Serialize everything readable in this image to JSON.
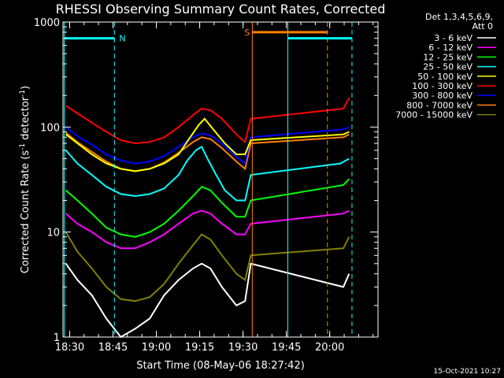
{
  "chart_data": {
    "type": "line",
    "title": "RHESSI Observing Summary Count Rates, Corrected",
    "xlabel": "Start Time (08-May-06 18:27:42)",
    "ylabel": "Corrected Count Rate (s^-1 detector^-1)",
    "ylabel_main": "Corrected Count Rate (s",
    "ylabel_exp1": "-1",
    "ylabel_mid": " detector",
    "ylabel_exp2": "-1",
    "ylabel_end": ")",
    "yscale": "log",
    "ylim": [
      1,
      1000
    ],
    "xlim": [
      0,
      109
    ],
    "x_units": "minutes after 18:27:42",
    "x_ticks": [
      {
        "value": 2.3,
        "label": "18:30"
      },
      {
        "value": 17.3,
        "label": "18:45"
      },
      {
        "value": 32.3,
        "label": "19:00"
      },
      {
        "value": 47.3,
        "label": "19:15"
      },
      {
        "value": 62.3,
        "label": "19:30"
      },
      {
        "value": 77.3,
        "label": "19:45"
      },
      {
        "value": 92.3,
        "label": "20:00"
      }
    ],
    "y_ticks": [
      {
        "value": 1,
        "label": "1"
      },
      {
        "value": 10,
        "label": "10"
      },
      {
        "value": 100,
        "label": "100"
      },
      {
        "value": 1000,
        "label": "1000"
      }
    ],
    "legend": {
      "placement": "top-right",
      "header_1": "Det 1,3,4,5,6,9,",
      "header_2": "Att 0"
    },
    "series": [
      {
        "name": "3 - 6 keV",
        "color": "#ffffff",
        "points": [
          [
            1,
            5
          ],
          [
            5,
            3.5
          ],
          [
            10,
            2.5
          ],
          [
            15,
            1.5
          ],
          [
            20,
            1
          ],
          [
            25,
            1.2
          ],
          [
            30,
            1.5
          ],
          [
            35,
            2.5
          ],
          [
            40,
            3.5
          ],
          [
            45,
            4.5
          ],
          [
            48,
            5
          ],
          [
            51,
            4.5
          ],
          [
            55,
            3
          ],
          [
            60,
            2
          ],
          [
            63,
            2.2
          ],
          [
            65,
            5
          ],
          [
            97,
            3
          ],
          [
            99,
            4
          ]
        ]
      },
      {
        "name": "6 - 12 keV",
        "color": "#ff00ff",
        "points": [
          [
            1,
            15
          ],
          [
            5,
            12
          ],
          [
            10,
            10
          ],
          [
            15,
            8
          ],
          [
            20,
            7
          ],
          [
            25,
            7
          ],
          [
            30,
            8
          ],
          [
            35,
            9.5
          ],
          [
            40,
            12
          ],
          [
            45,
            15
          ],
          [
            48,
            16
          ],
          [
            51,
            15
          ],
          [
            55,
            12
          ],
          [
            60,
            9.5
          ],
          [
            63,
            9.5
          ],
          [
            65,
            12
          ],
          [
            97,
            15
          ],
          [
            99,
            16
          ]
        ]
      },
      {
        "name": "12 - 25 keV",
        "color": "#00ff00",
        "points": [
          [
            1,
            25
          ],
          [
            5,
            20
          ],
          [
            10,
            15
          ],
          [
            15,
            11
          ],
          [
            20,
            9.5
          ],
          [
            25,
            9
          ],
          [
            30,
            10
          ],
          [
            35,
            12
          ],
          [
            40,
            16
          ],
          [
            45,
            22
          ],
          [
            48,
            27
          ],
          [
            51,
            25
          ],
          [
            55,
            19
          ],
          [
            60,
            14
          ],
          [
            63,
            14
          ],
          [
            65,
            20
          ],
          [
            97,
            28
          ],
          [
            99,
            32
          ]
        ]
      },
      {
        "name": "25 - 50 keV",
        "color": "#00ffff",
        "points": [
          [
            1,
            60
          ],
          [
            5,
            45
          ],
          [
            10,
            35
          ],
          [
            15,
            27
          ],
          [
            20,
            23
          ],
          [
            25,
            22
          ],
          [
            30,
            23
          ],
          [
            35,
            26
          ],
          [
            40,
            35
          ],
          [
            43,
            48
          ],
          [
            46,
            60
          ],
          [
            48,
            65
          ],
          [
            50,
            50
          ],
          [
            53,
            35
          ],
          [
            56,
            25
          ],
          [
            60,
            20
          ],
          [
            63,
            20
          ],
          [
            65,
            35
          ],
          [
            96,
            45
          ],
          [
            99,
            50
          ]
        ]
      },
      {
        "name": "50 - 100 keV",
        "color": "#ffff00",
        "points": [
          [
            1,
            85
          ],
          [
            5,
            70
          ],
          [
            10,
            55
          ],
          [
            15,
            45
          ],
          [
            20,
            40
          ],
          [
            25,
            38
          ],
          [
            30,
            40
          ],
          [
            35,
            45
          ],
          [
            40,
            55
          ],
          [
            44,
            80
          ],
          [
            47,
            105
          ],
          [
            49,
            120
          ],
          [
            52,
            95
          ],
          [
            56,
            70
          ],
          [
            60,
            55
          ],
          [
            63,
            55
          ],
          [
            65,
            75
          ],
          [
            97,
            85
          ],
          [
            99,
            90
          ]
        ]
      },
      {
        "name": "100 - 300 keV",
        "color": "#ff0000",
        "points": [
          [
            1,
            160
          ],
          [
            5,
            135
          ],
          [
            10,
            110
          ],
          [
            15,
            90
          ],
          [
            20,
            75
          ],
          [
            25,
            70
          ],
          [
            30,
            72
          ],
          [
            35,
            80
          ],
          [
            40,
            100
          ],
          [
            45,
            130
          ],
          [
            48,
            150
          ],
          [
            51,
            145
          ],
          [
            55,
            120
          ],
          [
            60,
            85
          ],
          [
            63,
            72
          ],
          [
            65,
            120
          ],
          [
            97,
            150
          ],
          [
            99,
            190
          ]
        ]
      },
      {
        "name": "300 - 800 keV",
        "color": "#0000ff",
        "points": [
          [
            1,
            100
          ],
          [
            5,
            82
          ],
          [
            10,
            68
          ],
          [
            15,
            55
          ],
          [
            20,
            48
          ],
          [
            25,
            45
          ],
          [
            30,
            47
          ],
          [
            35,
            53
          ],
          [
            40,
            65
          ],
          [
            45,
            80
          ],
          [
            48,
            87
          ],
          [
            51,
            83
          ],
          [
            55,
            70
          ],
          [
            60,
            52
          ],
          [
            63,
            45
          ],
          [
            65,
            80
          ],
          [
            97,
            95
          ],
          [
            99,
            100
          ]
        ]
      },
      {
        "name": "800 - 7000 keV",
        "color": "#ff8000",
        "points": [
          [
            1,
            88
          ],
          [
            5,
            72
          ],
          [
            10,
            58
          ],
          [
            15,
            47
          ],
          [
            20,
            40
          ],
          [
            25,
            38
          ],
          [
            30,
            40
          ],
          [
            35,
            46
          ],
          [
            40,
            57
          ],
          [
            45,
            72
          ],
          [
            48,
            80
          ],
          [
            51,
            77
          ],
          [
            55,
            63
          ],
          [
            60,
            47
          ],
          [
            63,
            40
          ],
          [
            65,
            70
          ],
          [
            97,
            80
          ],
          [
            99,
            85
          ]
        ]
      },
      {
        "name": "7000 - 15000 keV",
        "color": "#808000",
        "points": [
          [
            1,
            10
          ],
          [
            5,
            6.5
          ],
          [
            10,
            4.5
          ],
          [
            15,
            3
          ],
          [
            20,
            2.3
          ],
          [
            25,
            2.2
          ],
          [
            30,
            2.4
          ],
          [
            35,
            3.2
          ],
          [
            40,
            5
          ],
          [
            45,
            7.5
          ],
          [
            48,
            9.5
          ],
          [
            51,
            8.5
          ],
          [
            55,
            6
          ],
          [
            60,
            4
          ],
          [
            63,
            3.5
          ],
          [
            65,
            6
          ],
          [
            97,
            7
          ],
          [
            99,
            9
          ]
        ]
      }
    ],
    "markers": [
      {
        "label": "N",
        "color": "#00ffff",
        "x_start": 0.5,
        "x_end": 17.8,
        "level": 700
      },
      {
        "label": "S",
        "color": "#ff8000",
        "x_start": 65.5,
        "x_end": 91.5,
        "level": 800
      },
      {
        "label": "",
        "color": "#00ffff",
        "x_start": 77.8,
        "x_end": 100,
        "level": 700
      }
    ],
    "vlines": [
      {
        "x": 0.5,
        "color": "#00ffff",
        "style": "solid"
      },
      {
        "x": 17.8,
        "color": "#00ffff",
        "style": "dashed"
      },
      {
        "x": 65.5,
        "color": "#ff8000",
        "style": "solid"
      },
      {
        "x": 77.8,
        "color": "#00ffff",
        "style": "solid"
      },
      {
        "x": 91.5,
        "color": "#ff8000",
        "style": "dashed"
      },
      {
        "x": 100,
        "color": "#00ffff",
        "style": "dashed"
      }
    ],
    "footer": "15-Oct-2021 10:27"
  }
}
